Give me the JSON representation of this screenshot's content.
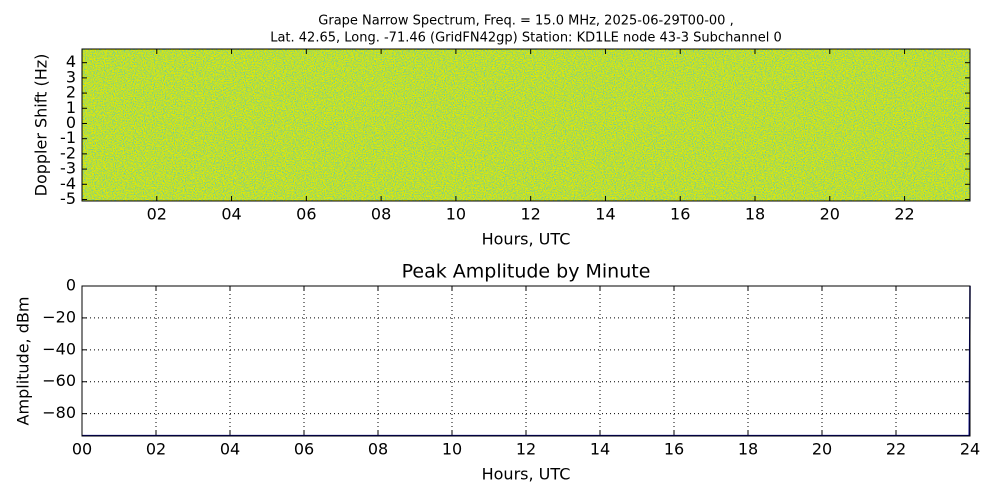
{
  "chart_data": [
    {
      "type": "heatmap",
      "title": "Grape Narrow Spectrum, Freq. = 15.0 MHz, 2025-06-29T00-00 ,",
      "subtitle": "Lat.  42.65, Long. -71.46 (GridFN42gp) Station: KD1LE node 43-3 Subchannel 0",
      "xlabel": "Hours, UTC",
      "ylabel": "Doppler Shift (Hz)",
      "color": "#e4e800",
      "xlim": [
        0,
        23.75
      ],
      "ylim": [
        -5.1,
        4.9
      ],
      "xticks": [
        {
          "value": 2,
          "label": "02"
        },
        {
          "value": 4,
          "label": "04"
        },
        {
          "value": 6,
          "label": "06"
        },
        {
          "value": 8,
          "label": "08"
        },
        {
          "value": 10,
          "label": "10"
        },
        {
          "value": 12,
          "label": "12"
        },
        {
          "value": 14,
          "label": "14"
        },
        {
          "value": 16,
          "label": "16"
        },
        {
          "value": 18,
          "label": "18"
        },
        {
          "value": 20,
          "label": "20"
        },
        {
          "value": 22,
          "label": "22"
        }
      ],
      "yticks": [
        -5,
        -4,
        -3,
        -2,
        -1,
        0,
        1,
        2,
        3,
        4
      ],
      "grid": false
    },
    {
      "type": "line",
      "title": "Peak Amplitude by Minute",
      "xlabel": "Hours, UTC",
      "ylabel": "Amplitude, dBm",
      "color": "#000080",
      "x": [
        0,
        23.98,
        24
      ],
      "values": [
        -93.8,
        -93.8,
        0
      ],
      "xlim": [
        0,
        24
      ],
      "ylim": [
        -94,
        0
      ],
      "xticks": [
        {
          "value": 0,
          "label": "00"
        },
        {
          "value": 2,
          "label": "02"
        },
        {
          "value": 4,
          "label": "04"
        },
        {
          "value": 6,
          "label": "06"
        },
        {
          "value": 8,
          "label": "08"
        },
        {
          "value": 10,
          "label": "10"
        },
        {
          "value": 12,
          "label": "12"
        },
        {
          "value": 14,
          "label": "14"
        },
        {
          "value": 16,
          "label": "16"
        },
        {
          "value": 18,
          "label": "18"
        },
        {
          "value": 20,
          "label": "20"
        },
        {
          "value": 22,
          "label": "22"
        },
        {
          "value": 24,
          "label": "24"
        }
      ],
      "yticks": [
        0,
        {
          "value": -20,
          "label": "−20"
        },
        {
          "value": -40,
          "label": "−40"
        },
        {
          "value": -60,
          "label": "−60"
        },
        {
          "value": -80,
          "label": "−80"
        }
      ],
      "grid": true
    }
  ]
}
